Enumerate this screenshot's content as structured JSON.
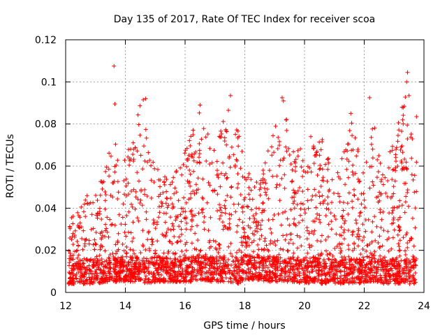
{
  "chart_data": {
    "type": "scatter",
    "title": "Day 135 of 2017, Rate Of TEC Index for receiver scoa",
    "xlabel": "GPS time / hours",
    "ylabel": "ROTI / TECUs",
    "xlim": [
      12,
      24
    ],
    "ylim": [
      0,
      0.12
    ],
    "xticks": [
      "12",
      "14",
      "16",
      "18",
      "20",
      "22",
      "24"
    ],
    "yticks": [
      "0",
      "0.02",
      "0.04",
      "0.06",
      "0.08",
      "0.1",
      "0.12"
    ],
    "grid": true,
    "marker": "+",
    "color": "#ff0000",
    "profile": {
      "x": [
        12.1,
        12.5,
        13.0,
        13.3,
        13.6,
        13.9,
        14.2,
        14.5,
        14.8,
        15.0,
        15.5,
        15.9,
        16.2,
        16.5,
        16.9,
        17.2,
        17.5,
        17.8,
        18.0,
        18.3,
        18.7,
        19.0,
        19.3,
        19.6,
        20.0,
        20.3,
        20.6,
        20.9,
        21.2,
        21.5,
        21.8,
        22.0,
        22.3,
        22.6,
        22.9,
        23.2,
        23.5,
        23.75
      ],
      "y_max": [
        0.033,
        0.045,
        0.05,
        0.062,
        0.085,
        0.068,
        0.07,
        0.09,
        0.072,
        0.06,
        0.055,
        0.065,
        0.075,
        0.088,
        0.07,
        0.08,
        0.092,
        0.075,
        0.062,
        0.055,
        0.064,
        0.08,
        0.092,
        0.07,
        0.068,
        0.078,
        0.075,
        0.062,
        0.065,
        0.085,
        0.072,
        0.055,
        0.085,
        0.062,
        0.07,
        0.085,
        0.1,
        0.08
      ],
      "y_min": [
        0.004,
        0.004,
        0.004,
        0.005,
        0.005,
        0.005,
        0.005,
        0.005,
        0.004,
        0.005,
        0.005,
        0.005,
        0.005,
        0.006,
        0.005,
        0.005,
        0.005,
        0.004,
        0.006,
        0.006,
        0.005,
        0.005,
        0.005,
        0.005,
        0.004,
        0.005,
        0.004,
        0.004,
        0.004,
        0.004,
        0.004,
        0.005,
        0.005,
        0.004,
        0.004,
        0.004,
        0.004,
        0.004
      ]
    },
    "outliers": [
      {
        "x": 13.62,
        "y": 0.1075
      },
      {
        "x": 13.65,
        "y": 0.0895
      },
      {
        "x": 14.6,
        "y": 0.0915
      },
      {
        "x": 14.68,
        "y": 0.092
      },
      {
        "x": 16.5,
        "y": 0.089
      },
      {
        "x": 17.52,
        "y": 0.0935
      },
      {
        "x": 17.45,
        "y": 0.0865
      },
      {
        "x": 19.25,
        "y": 0.0925
      },
      {
        "x": 21.55,
        "y": 0.085
      },
      {
        "x": 22.18,
        "y": 0.0925
      },
      {
        "x": 23.45,
        "y": 0.1045
      },
      {
        "x": 23.42,
        "y": 0.1
      },
      {
        "x": 23.5,
        "y": 0.0935
      },
      {
        "x": 23.75,
        "y": 0.0835
      }
    ]
  }
}
